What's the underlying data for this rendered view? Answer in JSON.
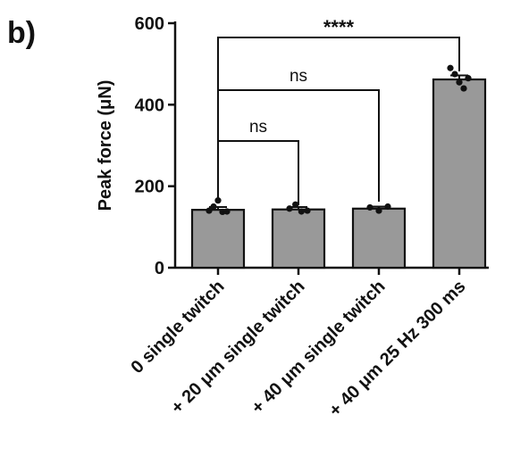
{
  "panel_label": "b)",
  "chart_data": {
    "type": "bar",
    "ylabel": "Peak force (μN)",
    "xlabel": "",
    "ylim": [
      0,
      600
    ],
    "yticks": [
      0,
      200,
      400,
      600
    ],
    "categories": [
      "0 single twitch",
      "+ 20 μm single twitch",
      "+ 40 μm single twitch",
      "+ 40 μm 25 Hz 300 ms"
    ],
    "values": [
      142,
      143,
      145,
      462
    ],
    "errors": [
      7,
      6,
      5,
      10
    ],
    "points": [
      [
        140,
        150,
        165,
        137,
        138
      ],
      [
        145,
        155,
        138,
        140
      ],
      [
        148,
        140,
        150
      ],
      [
        490,
        475,
        455,
        440,
        465
      ]
    ],
    "bar_color": "#999999",
    "significance": [
      {
        "from": 0,
        "to": 1,
        "label": "ns"
      },
      {
        "from": 0,
        "to": 2,
        "label": "ns"
      },
      {
        "from": 0,
        "to": 3,
        "label": "****"
      }
    ]
  }
}
